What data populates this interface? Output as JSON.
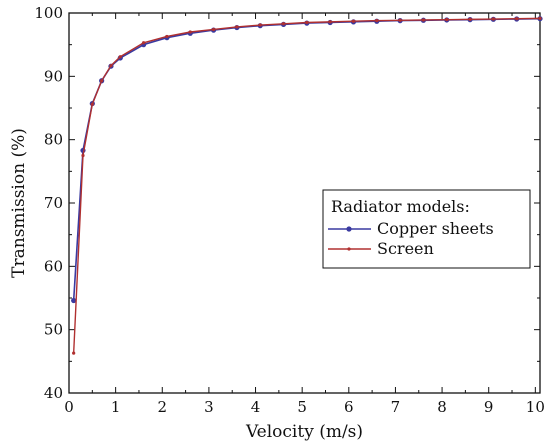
{
  "chart_data": {
    "type": "line",
    "title": "",
    "xlabel": "Velocity (m/s)",
    "ylabel": "Transmission (%)",
    "xlim": [
      0,
      10.1
    ],
    "ylim": [
      40,
      100
    ],
    "xticks": [
      0,
      1,
      2,
      3,
      4,
      5,
      6,
      7,
      8,
      9,
      10
    ],
    "yticks": [
      40,
      50,
      60,
      70,
      80,
      90,
      100
    ],
    "grid": false,
    "legend": {
      "title": "Radiator models:",
      "placement": "center-right"
    },
    "series": [
      {
        "name": "Copper sheets",
        "color": "#3a3aa0",
        "marker": "circle",
        "x": [
          0.1,
          0.3,
          0.5,
          0.7,
          0.9,
          1.1,
          1.6,
          2.1,
          2.6,
          3.1,
          3.6,
          4.1,
          4.6,
          5.1,
          5.6,
          6.1,
          6.6,
          7.1,
          7.6,
          8.1,
          8.6,
          9.1,
          9.6,
          10.1
        ],
        "y": [
          54.6,
          78.3,
          85.7,
          89.3,
          91.6,
          92.9,
          95.0,
          96.1,
          96.8,
          97.3,
          97.7,
          98.0,
          98.2,
          98.4,
          98.5,
          98.6,
          98.7,
          98.8,
          98.85,
          98.9,
          98.95,
          99.0,
          99.05,
          99.1
        ]
      },
      {
        "name": "Screen",
        "color": "#b03030",
        "marker": "dot",
        "x": [
          0.1,
          0.3,
          0.5,
          0.7,
          0.9,
          1.1,
          1.6,
          2.1,
          2.6,
          3.1,
          3.6,
          4.1,
          4.6,
          5.1,
          5.6,
          6.1,
          6.6,
          7.1,
          7.6,
          8.1,
          8.6,
          9.1,
          9.6,
          10.1
        ],
        "y": [
          46.3,
          77.5,
          85.6,
          89.3,
          91.7,
          93.1,
          95.3,
          96.3,
          97.0,
          97.4,
          97.8,
          98.1,
          98.3,
          98.5,
          98.6,
          98.7,
          98.8,
          98.85,
          98.9,
          98.95,
          99.0,
          99.05,
          99.1,
          99.15
        ]
      }
    ]
  }
}
